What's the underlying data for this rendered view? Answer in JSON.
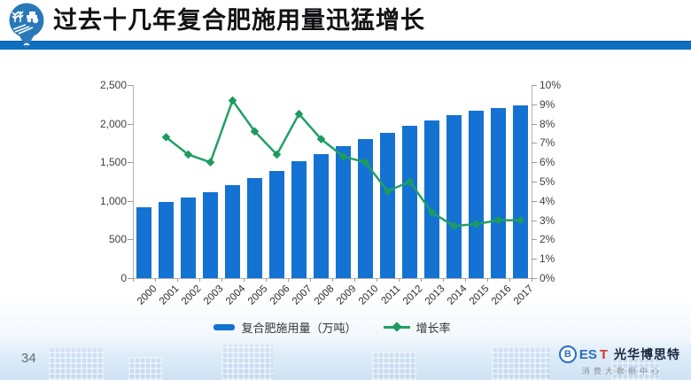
{
  "header": {
    "title": "过去十几年复合肥施用量迅猛增长",
    "logo": "agriculture-pin-logo"
  },
  "footer": {
    "page_number": "34",
    "brand": {
      "mark": "B",
      "en_blue": "ES",
      "en_red": "T",
      "name_cn": "光华博思特",
      "tagline": "消费大数据中心"
    }
  },
  "colors": {
    "bar_blue": "#1472d2",
    "line_green": "#21a164",
    "divider_blue": "#0e6fc0"
  },
  "chart_data": {
    "type": "bar",
    "subtype": "combo-bar-line-dual-axis",
    "title": "过去十几年复合肥施用量迅猛增长",
    "xlabel": "",
    "ylabel_left": "复合肥施用量（万吨）",
    "ylabel_right": "增长率",
    "grid": "off",
    "legend_position": "bottom-center",
    "categories": [
      "2000",
      "2001",
      "2002",
      "2003",
      "2004",
      "2005",
      "2006",
      "2007",
      "2008",
      "2009",
      "2010",
      "2011",
      "2012",
      "2013",
      "2014",
      "2015",
      "2016",
      "2017"
    ],
    "series": [
      {
        "name": "复合肥施用量（万吨）",
        "type": "bar",
        "axis": "left",
        "color": "#1472d2",
        "values": [
          920,
          990,
          1040,
          1110,
          1205,
          1300,
          1390,
          1510,
          1610,
          1705,
          1800,
          1880,
          1975,
          2045,
          2105,
          2165,
          2205,
          2240
        ]
      },
      {
        "name": "增长率",
        "type": "line",
        "axis": "right",
        "color": "#21a164",
        "values": [
          null,
          7.3,
          6.4,
          6.0,
          9.2,
          7.6,
          6.4,
          8.5,
          7.2,
          6.3,
          6.0,
          4.5,
          5.0,
          3.4,
          2.7,
          2.8,
          3.0,
          3.0
        ]
      }
    ],
    "left_axis": {
      "min": 0,
      "max": 2500,
      "step": 500,
      "tick_labels": [
        "0",
        "500",
        "1,000",
        "1,500",
        "2,000",
        "2,500"
      ]
    },
    "right_axis": {
      "min": 0,
      "max": 10,
      "step": 1,
      "tick_labels": [
        "0%",
        "1%",
        "2%",
        "3%",
        "4%",
        "5%",
        "6%",
        "7%",
        "8%",
        "9%",
        "10%"
      ]
    }
  }
}
